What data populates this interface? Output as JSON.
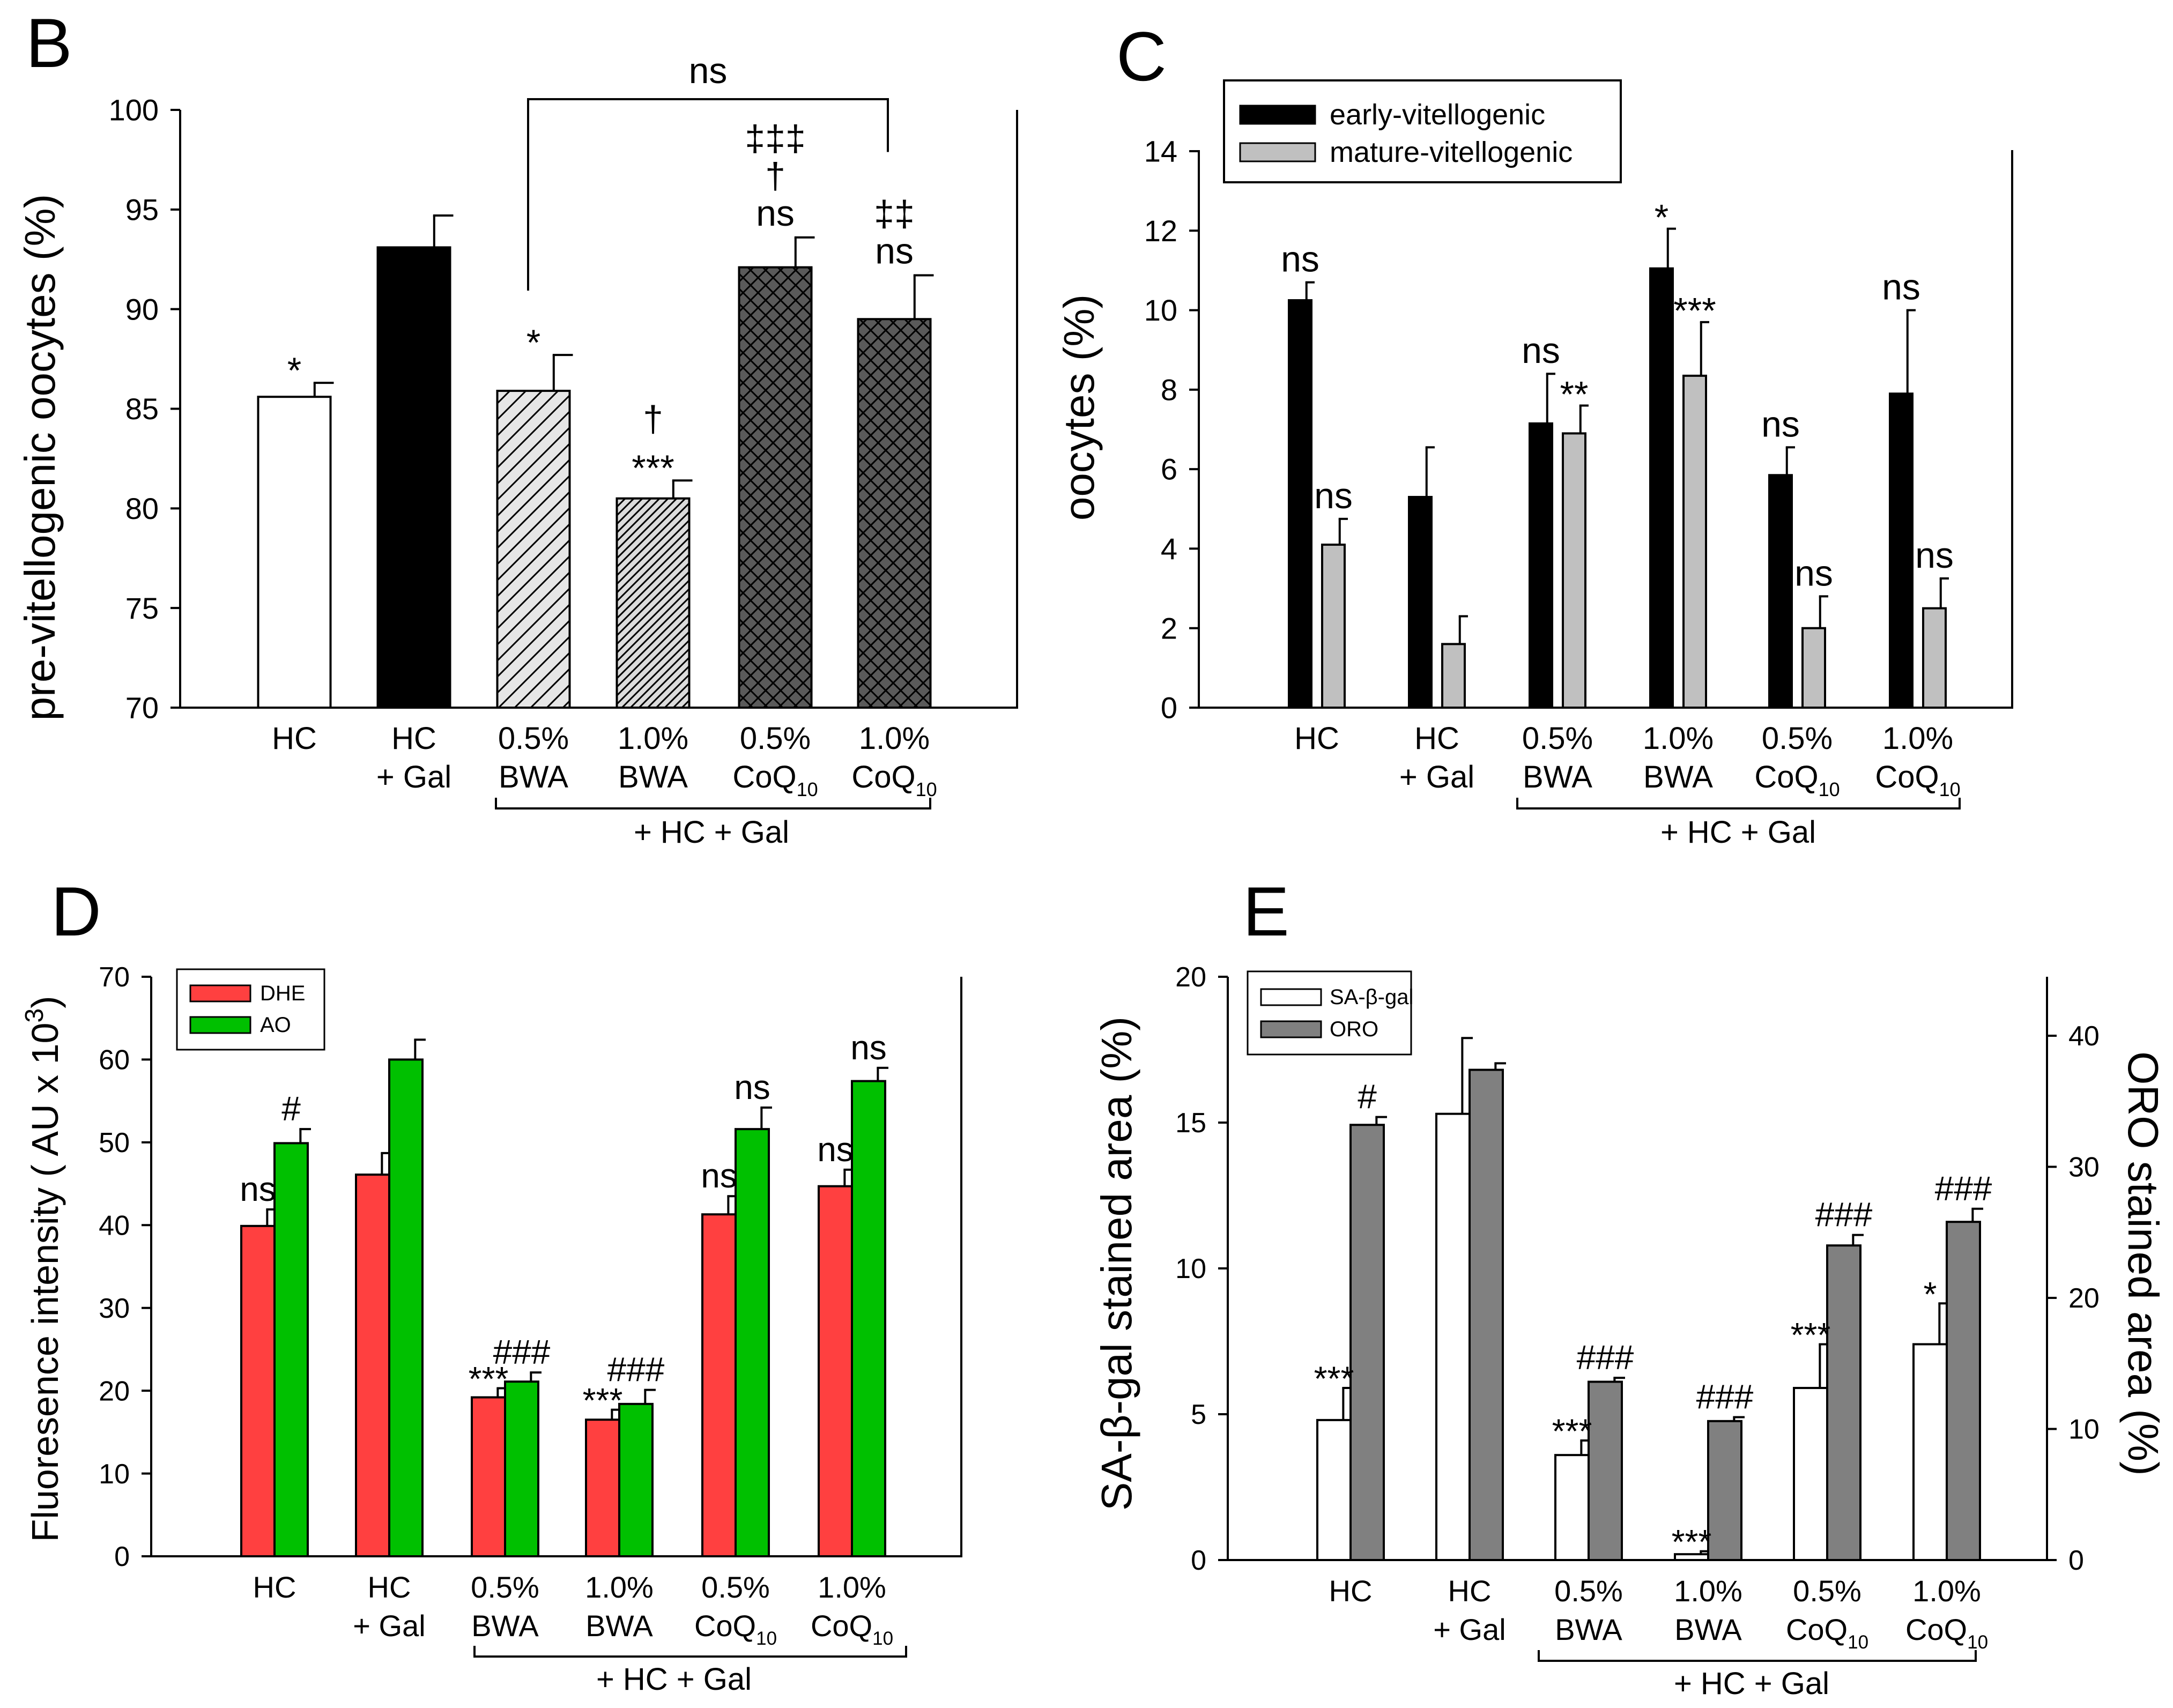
{
  "figure": {
    "panels": {
      "B": {
        "letter": "B",
        "ylabel": "pre-vitellogenic oocytes (%)",
        "group_label": "+ HC + Gal",
        "bracket_label": "ns"
      },
      "C": {
        "letter": "C",
        "ylabel": "oocytes  (%)",
        "group_label": "+ HC + Gal"
      },
      "D": {
        "letter": "D",
        "ylabel": "Fluoresence intensity ( AU x 10",
        "ylabel_sup": "3",
        "ylabel_end": ")",
        "group_label": "+ HC + Gal"
      },
      "E": {
        "letter": "E",
        "ylabel": "SA-β-gal stained area (%)",
        "ylabel_right": "ORO stained area (%)",
        "group_label": "+ HC + Gal"
      }
    }
  },
  "categories": [
    {
      "line1": "HC",
      "line2": "",
      "sub": ""
    },
    {
      "line1": "HC",
      "line2": "+ Gal",
      "sub": ""
    },
    {
      "line1": "0.5%",
      "line2": "BWA",
      "sub": ""
    },
    {
      "line1": "1.0%",
      "line2": "BWA",
      "sub": ""
    },
    {
      "line1": "0.5%",
      "line2": "CoQ",
      "sub": "10"
    },
    {
      "line1": "1.0%",
      "line2": "CoQ",
      "sub": "10"
    }
  ],
  "chart_data": [
    {
      "panel": "B",
      "type": "bar",
      "title": "",
      "ylabel": "pre-vitellogenic oocytes (%)",
      "ylim": [
        70,
        100
      ],
      "yticks": [
        70,
        75,
        80,
        85,
        90,
        95,
        100
      ],
      "categories": [
        "HC",
        "HC + Gal",
        "0.5% BWA",
        "1.0% BWA",
        "0.5% CoQ10",
        "1.0% CoQ10"
      ],
      "series": [
        {
          "name": "pre-vitellogenic",
          "fills": [
            "white",
            "black",
            "diag-light",
            "diag-dense",
            "cross-dark",
            "cross-dark"
          ],
          "values": [
            85.6,
            93.1,
            85.9,
            80.5,
            92.1,
            89.5
          ],
          "errors": [
            0.7,
            1.6,
            1.8,
            0.9,
            1.5,
            2.2
          ]
        }
      ],
      "annotations": [
        {
          "cat": 0,
          "series": 0,
          "lines": [
            "*"
          ]
        },
        {
          "cat": 2,
          "series": 0,
          "lines": [
            "*"
          ]
        },
        {
          "cat": 3,
          "series": 0,
          "lines": [
            "†",
            "***"
          ]
        },
        {
          "cat": 4,
          "series": 0,
          "lines": [
            "‡‡‡",
            "†",
            "ns"
          ]
        },
        {
          "cat": 5,
          "series": 0,
          "lines": [
            "‡‡",
            "ns"
          ]
        }
      ],
      "bracket": {
        "from": 2,
        "to": 5,
        "label": "ns"
      }
    },
    {
      "panel": "C",
      "type": "bar",
      "ylabel": "oocytes  (%)",
      "ylim": [
        0,
        14
      ],
      "yticks": [
        0,
        2,
        4,
        6,
        8,
        10,
        12,
        14
      ],
      "categories": [
        "HC",
        "HC + Gal",
        "0.5% BWA",
        "1.0% BWA",
        "0.5% CoQ10",
        "1.0% CoQ10"
      ],
      "legend": [
        "early-vitellogenic",
        "mature-vitellogenic"
      ],
      "series": [
        {
          "name": "early-vitellogenic",
          "color": "#000000",
          "values": [
            10.25,
            5.3,
            7.15,
            11.05,
            5.85,
            7.9
          ],
          "errors": [
            0.45,
            1.25,
            1.25,
            1.0,
            0.7,
            2.1
          ]
        },
        {
          "name": "mature-vitellogenic",
          "color": "#c0c0c0",
          "values": [
            4.1,
            1.6,
            6.9,
            8.35,
            2.0,
            2.5
          ],
          "errors": [
            0.65,
            0.7,
            0.7,
            1.35,
            0.8,
            0.75
          ]
        }
      ],
      "annotations": [
        {
          "cat": 0,
          "series": 0,
          "lines": [
            "ns"
          ]
        },
        {
          "cat": 0,
          "series": 1,
          "lines": [
            "ns"
          ]
        },
        {
          "cat": 2,
          "series": 0,
          "lines": [
            "ns"
          ]
        },
        {
          "cat": 2,
          "series": 1,
          "lines": [
            "**"
          ]
        },
        {
          "cat": 3,
          "series": 0,
          "lines": [
            "*"
          ]
        },
        {
          "cat": 3,
          "series": 1,
          "lines": [
            "***"
          ]
        },
        {
          "cat": 4,
          "series": 0,
          "lines": [
            "ns"
          ]
        },
        {
          "cat": 4,
          "series": 1,
          "lines": [
            "ns"
          ]
        },
        {
          "cat": 5,
          "series": 0,
          "lines": [
            "ns"
          ]
        },
        {
          "cat": 5,
          "series": 1,
          "lines": [
            "ns"
          ]
        }
      ]
    },
    {
      "panel": "D",
      "type": "bar",
      "ylabel": "Fluoresence intensity ( AU x 10^3)",
      "ylim": [
        0,
        70
      ],
      "yticks": [
        0,
        10,
        20,
        30,
        40,
        50,
        60,
        70
      ],
      "categories": [
        "HC",
        "HC + Gal",
        "0.5% BWA",
        "1.0% BWA",
        "0.5% CoQ10",
        "1.0% CoQ10"
      ],
      "legend": [
        "DHE",
        "AO"
      ],
      "series": [
        {
          "name": "DHE",
          "color": "#ff4040",
          "values": [
            39.9,
            46.1,
            19.2,
            16.5,
            41.3,
            44.7
          ],
          "errors": [
            2.0,
            2.6,
            1.1,
            1.2,
            2.2,
            2.0
          ]
        },
        {
          "name": "AO",
          "color": "#00c000",
          "values": [
            49.9,
            60.0,
            21.1,
            18.4,
            51.6,
            57.4
          ],
          "errors": [
            1.7,
            2.4,
            1.1,
            1.7,
            2.6,
            1.6
          ]
        }
      ],
      "annotations": [
        {
          "cat": 0,
          "series": 0,
          "lines": [
            "ns"
          ]
        },
        {
          "cat": 0,
          "series": 1,
          "lines": [
            "#"
          ]
        },
        {
          "cat": 2,
          "series": 0,
          "lines": [
            "***"
          ]
        },
        {
          "cat": 2,
          "series": 1,
          "lines": [
            "###"
          ]
        },
        {
          "cat": 3,
          "series": 0,
          "lines": [
            "***"
          ]
        },
        {
          "cat": 3,
          "series": 1,
          "lines": [
            "###"
          ]
        },
        {
          "cat": 4,
          "series": 0,
          "lines": [
            "ns"
          ]
        },
        {
          "cat": 4,
          "series": 1,
          "lines": [
            "ns"
          ]
        },
        {
          "cat": 5,
          "series": 0,
          "lines": [
            "ns"
          ]
        },
        {
          "cat": 5,
          "series": 1,
          "lines": [
            "ns"
          ]
        }
      ]
    },
    {
      "panel": "E",
      "type": "bar",
      "ylabel": "SA-β-gal stained area (%)",
      "ylabel_right": "ORO stained area (%)",
      "ylim": [
        0,
        20
      ],
      "yticks": [
        0,
        5,
        10,
        15,
        20
      ],
      "ylim_right": [
        0,
        44.5
      ],
      "yticks_right": [
        0,
        10,
        20,
        30,
        40
      ],
      "categories": [
        "HC",
        "HC + Gal",
        "0.5% BWA",
        "1.0% BWA",
        "0.5% CoQ10",
        "1.0% CoQ10"
      ],
      "legend": [
        "SA-β-gal",
        "ORO"
      ],
      "series": [
        {
          "name": "SA-β-gal",
          "color": "#ffffff",
          "axis": "left",
          "values": [
            4.8,
            15.3,
            3.6,
            0.2,
            5.9,
            7.4
          ],
          "errors": [
            1.1,
            2.6,
            0.5,
            0.1,
            1.5,
            1.4
          ]
        },
        {
          "name": "ORO",
          "color": "#808080",
          "axis": "right",
          "values": [
            33.2,
            37.4,
            13.6,
            10.6,
            24.0,
            25.8
          ],
          "errors": [
            0.6,
            0.5,
            0.3,
            0.3,
            0.8,
            1.0
          ]
        }
      ],
      "annotations": [
        {
          "cat": 0,
          "series": 0,
          "lines": [
            "***"
          ]
        },
        {
          "cat": 0,
          "series": 1,
          "lines": [
            "#"
          ]
        },
        {
          "cat": 2,
          "series": 0,
          "lines": [
            "***"
          ]
        },
        {
          "cat": 2,
          "series": 1,
          "lines": [
            "###"
          ]
        },
        {
          "cat": 3,
          "series": 0,
          "lines": [
            "***"
          ]
        },
        {
          "cat": 3,
          "series": 1,
          "lines": [
            "###"
          ]
        },
        {
          "cat": 4,
          "series": 0,
          "lines": [
            "***"
          ]
        },
        {
          "cat": 4,
          "series": 1,
          "lines": [
            "###"
          ]
        },
        {
          "cat": 5,
          "series": 0,
          "lines": [
            "*"
          ]
        },
        {
          "cat": 5,
          "series": 1,
          "lines": [
            "###"
          ]
        }
      ]
    }
  ]
}
